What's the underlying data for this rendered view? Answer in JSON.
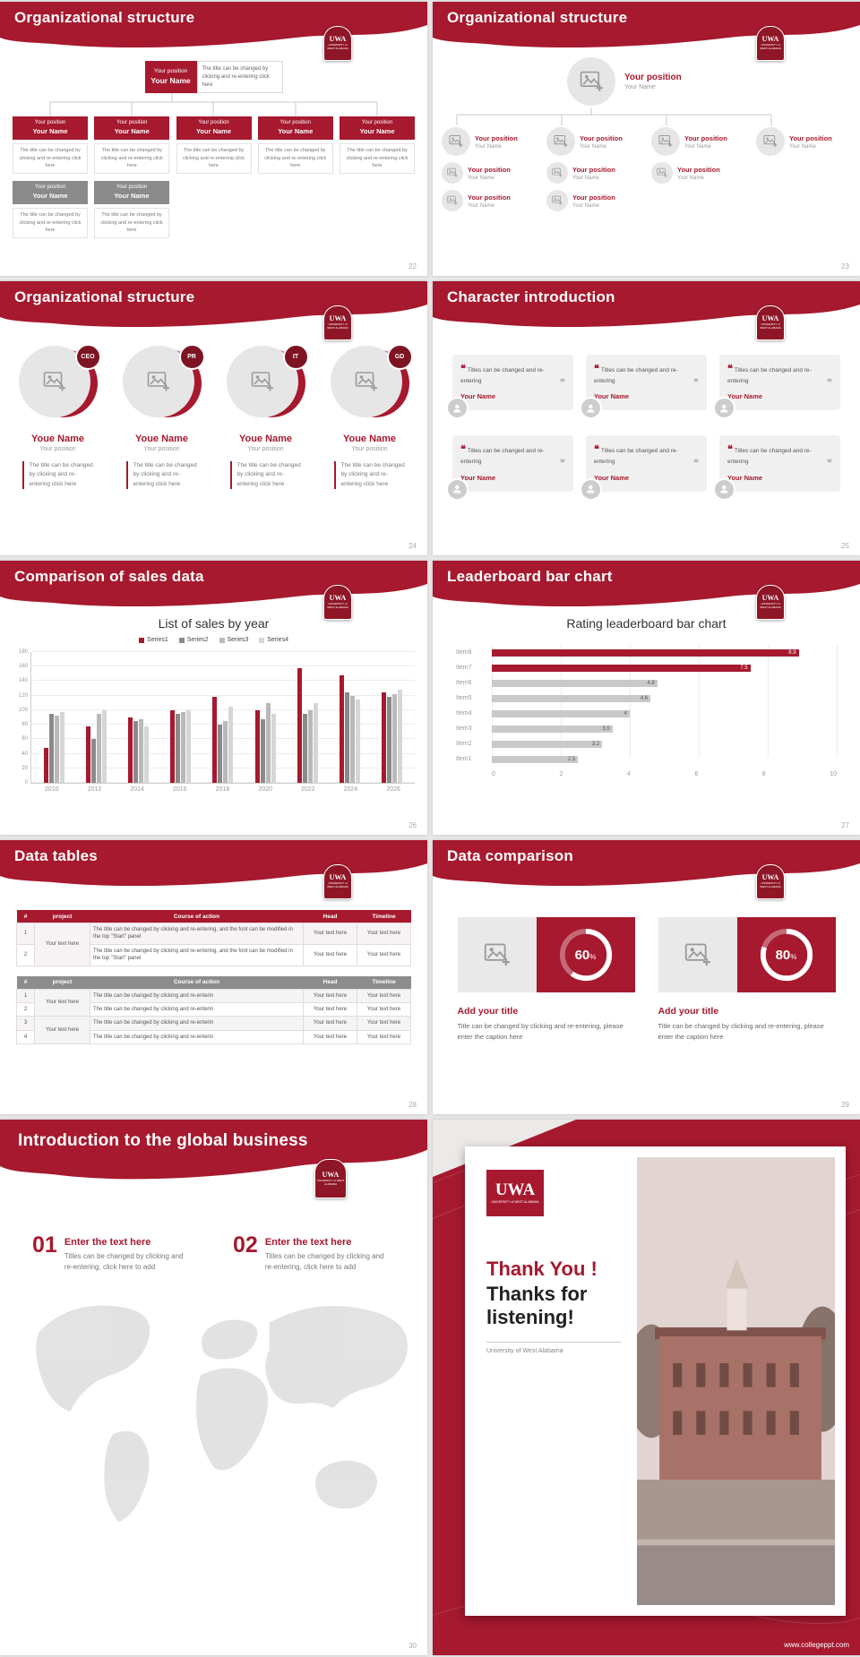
{
  "brand": {
    "logo_text": "UWA",
    "logo_subtext": "UNIVERSITY of WEST ALABAMA",
    "footer_url": "www.collegeppt.com",
    "colors": {
      "primary": "#a6192e",
      "dark_red": "#8f1626",
      "gray": "#8a8a8a",
      "light_gray": "#b9b9b9",
      "lighter_gray": "#d6d6d6"
    }
  },
  "slides": {
    "s22": {
      "title": "Organizational structure",
      "page": "22",
      "root": {
        "position": "Your position",
        "name": "Your Name"
      },
      "note": "The title can be changed by clicking and re-entering click here",
      "caption": "The title can be changed by clicking and re-entering click here",
      "level1": [
        {
          "position": "Your position",
          "name": "Your Name"
        },
        {
          "position": "Your position",
          "name": "Your Name"
        },
        {
          "position": "Your position",
          "name": "Your Name"
        },
        {
          "position": "Your position",
          "name": "Your Name"
        },
        {
          "position": "Your position",
          "name": "Your Name"
        }
      ],
      "level2": [
        {
          "position": "Your position",
          "name": "Your Name"
        },
        {
          "position": "Your position",
          "name": "Your Name"
        }
      ]
    },
    "s23": {
      "title": "Organizational structure",
      "page": "23",
      "head": {
        "position": "Your position",
        "name": "Your Name"
      },
      "cols": [
        [
          {
            "position": "Your position",
            "name": "Your Name"
          },
          {
            "position": "Your position",
            "name": "Your Name"
          },
          {
            "position": "Your position",
            "name": "Your Name"
          }
        ],
        [
          {
            "position": "Your position",
            "name": "Your Name"
          },
          {
            "position": "Your position",
            "name": "Your Name"
          },
          {
            "position": "Your position",
            "name": "Your Name"
          }
        ],
        [
          {
            "position": "Your position",
            "name": "Your Name"
          },
          {
            "position": "Your position",
            "name": "Your Name"
          }
        ],
        [
          {
            "position": "Your position",
            "name": "Your Name"
          }
        ]
      ]
    },
    "s24": {
      "title": "Organizational structure",
      "page": "24",
      "caption": "The title can be changed by clicking and re-entering click here",
      "members": [
        {
          "badge": "CEO",
          "name": "Youe Name",
          "position": "Your position"
        },
        {
          "badge": "PR",
          "name": "Youe Name",
          "position": "Your position"
        },
        {
          "badge": "IT",
          "name": "Youe Name",
          "position": "Your position"
        },
        {
          "badge": "GD",
          "name": "Youe Name",
          "position": "Your position"
        }
      ]
    },
    "s25": {
      "title": "Character introduction",
      "page": "25",
      "quote_open": "❝",
      "quote_close": "❞",
      "cards": [
        {
          "text": "Titles can be changed and re-entering",
          "name": "Your Name"
        },
        {
          "text": "Titles can be changed and re-entering",
          "name": "Your Name"
        },
        {
          "text": "Titles can be changed and re-entering",
          "name": "Your Name"
        },
        {
          "text": "Titles can be changed and re-entering",
          "name": "Your Name"
        },
        {
          "text": "Titles can be changed and re-entering",
          "name": "Your Name"
        },
        {
          "text": "Titles can be changed and re-entering",
          "name": "Your Name"
        }
      ]
    },
    "s26": {
      "title": "Comparison of sales data",
      "page": "26"
    },
    "s27": {
      "title": "Leaderboard bar chart",
      "page": "27"
    },
    "s28": {
      "title": "Data tables",
      "page": "28",
      "table1": {
        "headers": [
          "#",
          "project",
          "Course of action",
          "Head",
          "Timeline"
        ],
        "nums": [
          "1",
          "2"
        ],
        "project": "Your text here",
        "actions": [
          "The title can be changed by clicking and re-entering, and the font can be modified in the top \"Start\" panel",
          "The title can be changed by clicking and re-entering, and the font can be modified in the top \"Start\" panel"
        ],
        "cell_text": "Your text here"
      },
      "table2": {
        "headers": [
          "#",
          "project",
          "Course of action",
          "Head",
          "Timeline"
        ],
        "nums": [
          "1",
          "2",
          "3",
          "4"
        ],
        "projects": [
          "Your text here",
          "Your text here"
        ],
        "action": "The title can be changed by clicking and re-enterin",
        "cell_text": "Your text here"
      }
    },
    "s29": {
      "title": "Data comparison",
      "page": "29",
      "panels": [
        {
          "title": "Add your title",
          "caption": "Title can be changed by clicking and re-entering, please enter the caption here"
        },
        {
          "title": "Add your title",
          "caption": "Title can be changed by clicking and re-entering, please enter the caption here"
        }
      ]
    },
    "s30": {
      "title": "Introduction to the global business",
      "page": "30",
      "items": [
        {
          "number": "01",
          "heading": "Enter the text here",
          "caption": "Titles can be changed by clicking and re-entering, click here to add"
        },
        {
          "number": "02",
          "heading": "Enter the text here",
          "caption": "Titles can be changed by clicking and re-entering, click here to add"
        }
      ]
    },
    "thankyou": {
      "title_line1": "Thank You !",
      "title_line2": "Thanks for listening!",
      "subtitle": "University of West Alabama",
      "url": "www.collegeppt.com"
    }
  },
  "chart_data": [
    {
      "id": "sales_by_year",
      "type": "bar",
      "title": "List of sales by year",
      "categories": [
        "2010",
        "2012",
        "2014",
        "2016",
        "2018",
        "2020",
        "2022",
        "2024",
        "2026"
      ],
      "series": [
        {
          "name": "Series1",
          "color": "#a6192e",
          "values": [
            48,
            78,
            90,
            100,
            118,
            100,
            158,
            148,
            125
          ]
        },
        {
          "name": "Series2",
          "color": "#8a8a8a",
          "values": [
            95,
            60,
            85,
            95,
            80,
            88,
            95,
            125,
            118
          ]
        },
        {
          "name": "Series3",
          "color": "#b9b9b9",
          "values": [
            92,
            95,
            88,
            98,
            85,
            110,
            100,
            120,
            122
          ]
        },
        {
          "name": "Series4",
          "color": "#d6d6d6",
          "values": [
            98,
            100,
            78,
            100,
            105,
            95,
            110,
            115,
            128
          ]
        }
      ],
      "ylim": [
        0,
        180
      ],
      "ytick": 20,
      "grid": true,
      "legend_position": "top"
    },
    {
      "id": "rating_leaderboard",
      "type": "hbar",
      "title": "Rating leaderboard bar chart",
      "categories": [
        "Item1",
        "Item2",
        "Item3",
        "Item4",
        "Item5",
        "Item6",
        "Item7",
        "Item8"
      ],
      "values": [
        2.5,
        3.2,
        3.5,
        4,
        4.6,
        4.8,
        7.5,
        8.9
      ],
      "bar_color": "#c9c9c9",
      "highlight_color": "#a6192e",
      "highlighted": [
        "Item7",
        "Item8"
      ],
      "xlim": [
        0,
        10
      ],
      "xticks": [
        0,
        2,
        4,
        6,
        8,
        10
      ],
      "grid": true
    },
    {
      "id": "data_comparison_donuts",
      "type": "donut",
      "suffix": "%",
      "items": [
        {
          "percent": 60
        },
        {
          "percent": 80
        }
      ]
    }
  ]
}
